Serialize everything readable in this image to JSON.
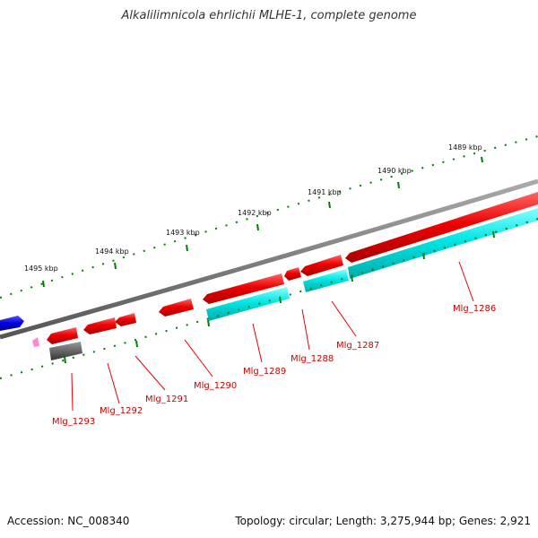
{
  "title": "Alkalilimnicola ehrlichii MLHE-1, complete genome",
  "footer": {
    "accession": "Accession: NC_008340",
    "summary": "Topology: circular; Length: 3,275,944 bp; Genes: 2,921"
  },
  "colors": {
    "backbone": "#808080",
    "forward_gene": "#ee0000",
    "reverse_gene": "#00e5e5",
    "label": "#cc0000",
    "tick": "#008000",
    "blue_gene": "#0000dd",
    "pink_gene": "#ff88cc",
    "gray_gene": "#555555"
  },
  "kbp_labels": [
    "1489 kbp",
    "1490 kbp",
    "1491 kbp",
    "1492 kbp",
    "1493 kbp",
    "1494 kbp",
    "1495 kbp"
  ],
  "gene_labels": [
    "Mlg_1286",
    "Mlg_1287",
    "Mlg_1288",
    "Mlg_1289",
    "Mlg_1290",
    "Mlg_1291",
    "Mlg_1292",
    "Mlg_1293"
  ]
}
